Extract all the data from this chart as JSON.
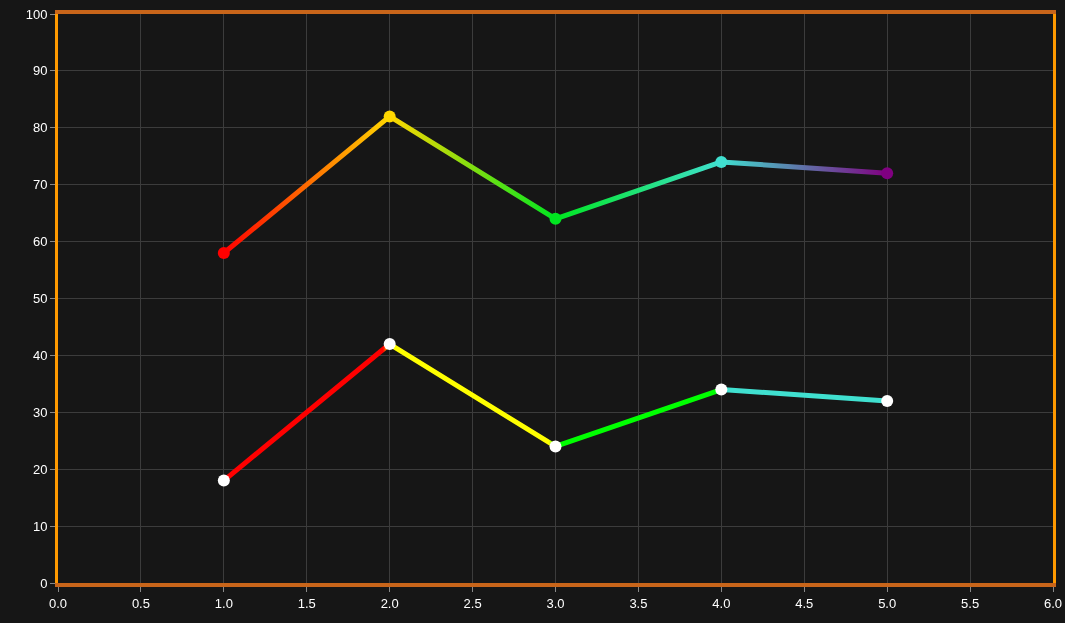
{
  "chart_data": {
    "type": "line",
    "x": [
      1,
      2,
      3,
      4,
      5
    ],
    "series": [
      {
        "type": "line",
        "colors": [
          "#ff0000",
          "#ffd700",
          "#00e620",
          "#40e0d0",
          "#800080"
        ],
        "values": [
          58,
          82,
          64,
          74,
          72
        ],
        "marker": "circle"
      },
      {
        "type": "line",
        "colors": [
          "#ff0000",
          "#ffff00",
          "#00ff00",
          "#40e0d0",
          "#40e0d0"
        ],
        "values": [
          18,
          42,
          24,
          34,
          32
        ],
        "marker": "none"
      },
      {
        "type": "scatter",
        "color": "#ffffff",
        "values": [
          18,
          42,
          24,
          34,
          32
        ],
        "marker": "circle"
      }
    ],
    "xlim": [
      0,
      6
    ],
    "xticks": [
      {
        "value": 0,
        "label": "0.0"
      },
      0.5,
      {
        "value": 1,
        "label": "1.0"
      },
      1.5,
      {
        "value": 2,
        "label": "2.0"
      },
      2.5,
      {
        "value": 3,
        "label": "3.0"
      },
      3.5,
      {
        "value": 4,
        "label": "4.0"
      },
      4.5,
      {
        "value": 5,
        "label": "5.0"
      },
      5.5,
      {
        "value": 6,
        "label": "6.0"
      }
    ],
    "ylim": [
      0,
      100
    ],
    "yticks": [
      0,
      10,
      20,
      30,
      40,
      50,
      60,
      70,
      80,
      90,
      100
    ],
    "grid": true,
    "line_style": "solid"
  }
}
